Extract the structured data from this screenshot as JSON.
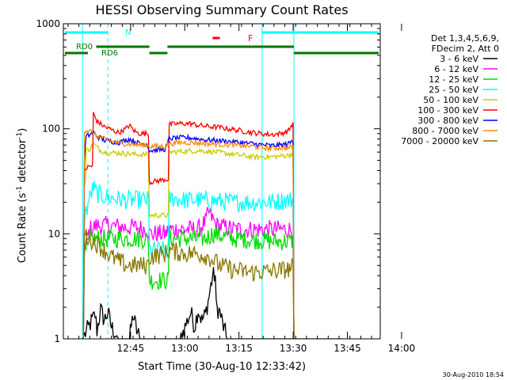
{
  "chart_data": {
    "type": "line",
    "title": "HESSI Observing Summary Count Rates",
    "xlabel": "Start Time (30-Aug-10 12:33:42)",
    "ylabel_parts": [
      "Count Rate (s",
      "-1",
      " detector",
      "-1",
      ")"
    ],
    "yscale": "log",
    "ylim": [
      1,
      1000
    ],
    "xlim_minutes": [
      -7.3,
      80.4
    ],
    "x_ticks": [
      "12:45",
      "13:00",
      "13:15",
      "13:30",
      "13:45",
      "14:00"
    ],
    "y_ticks": [
      "1",
      "10",
      "100",
      "1000"
    ],
    "timestamp": "30-Aug-2010 18:54",
    "legend": {
      "header": [
        "Det 1,3,4,5,6,9,",
        "FDecim 2, Att 0"
      ],
      "entries": [
        {
          "label": "3 - 6 keV",
          "color": "#000000"
        },
        {
          "label": "6 - 12 keV",
          "color": "#ff00ff"
        },
        {
          "label": "12 - 25 keV",
          "color": "#00dd00"
        },
        {
          "label": "25 - 50 keV",
          "color": "#00ffff"
        },
        {
          "label": "50 - 100 keV",
          "color": "#cccc00"
        },
        {
          "label": "100 - 300 keV",
          "color": "#ff0000"
        },
        {
          "label": "300 - 800 keV",
          "color": "#0000ff"
        },
        {
          "label": "800 - 7000 keV",
          "color": "#ff8800"
        },
        {
          "label": "7000 - 20000 keV",
          "color": "#887700"
        }
      ]
    },
    "annotations": {
      "night_label": "N",
      "flare_label": "F",
      "radiation_belt_labels": [
        "RD0",
        "RD6"
      ],
      "night_color": "#00ffff",
      "flare_color": "#ff0000",
      "belt_color": "#007700"
    },
    "series": [
      {
        "name": "3 - 6 keV",
        "color": "#000000",
        "style": "noise",
        "points": [
          [
            -2,
            1
          ],
          [
            1.5,
            1.7
          ],
          [
            2,
            1.2
          ],
          [
            3,
            1.9
          ],
          [
            4,
            1.5
          ],
          [
            5,
            1.8
          ],
          [
            6,
            1.3
          ],
          [
            8,
            1
          ],
          [
            11,
            1
          ],
          [
            12,
            1.7
          ],
          [
            13,
            1.2
          ],
          [
            14,
            1
          ],
          [
            18,
            1
          ],
          [
            25,
            1
          ],
          [
            28,
            1.8
          ],
          [
            29,
            1.3
          ],
          [
            30,
            1.9
          ],
          [
            31,
            1.5
          ],
          [
            32,
            1.7
          ],
          [
            33,
            2.5
          ],
          [
            34,
            4
          ],
          [
            35,
            2
          ],
          [
            36,
            1.8
          ],
          [
            37,
            1.3
          ],
          [
            38,
            1
          ],
          [
            48,
            1
          ],
          [
            70,
            1
          ]
        ]
      },
      {
        "name": "6 - 12 keV",
        "color": "#ff00ff",
        "style": "noise",
        "points": [
          [
            -2,
            1
          ],
          [
            -1.5,
            7
          ],
          [
            0,
            11
          ],
          [
            2,
            12
          ],
          [
            5,
            12
          ],
          [
            10,
            11.5
          ],
          [
            13,
            11.5
          ],
          [
            16,
            11
          ],
          [
            16.5,
            10
          ],
          [
            21,
            10
          ],
          [
            22,
            11
          ],
          [
            26,
            11
          ],
          [
            30,
            11
          ],
          [
            32,
            13
          ],
          [
            33,
            16
          ],
          [
            35,
            12
          ],
          [
            40,
            11
          ],
          [
            50,
            11
          ],
          [
            55,
            11
          ],
          [
            56,
            11
          ],
          [
            56.5,
            1
          ]
        ]
      },
      {
        "name": "12 - 25 keV",
        "color": "#00dd00",
        "style": "noise",
        "points": [
          [
            -2,
            1
          ],
          [
            -1.5,
            6
          ],
          [
            0,
            9
          ],
          [
            5,
            9
          ],
          [
            10,
            9
          ],
          [
            13,
            9
          ],
          [
            16,
            8.8
          ],
          [
            16.5,
            3.6
          ],
          [
            21,
            3.6
          ],
          [
            22,
            9
          ],
          [
            26,
            9
          ],
          [
            32,
            9
          ],
          [
            34,
            10
          ],
          [
            40,
            9
          ],
          [
            50,
            8.5
          ],
          [
            55,
            8.5
          ],
          [
            56,
            8.5
          ],
          [
            56.5,
            1
          ]
        ]
      },
      {
        "name": "25 - 50 keV",
        "color": "#00ffff",
        "style": "noise",
        "points": [
          [
            -2,
            1
          ],
          [
            -1.5,
            14
          ],
          [
            0,
            22
          ],
          [
            1,
            28
          ],
          [
            2,
            24
          ],
          [
            5,
            22
          ],
          [
            10,
            21
          ],
          [
            13,
            21
          ],
          [
            16,
            21
          ],
          [
            16.5,
            7
          ],
          [
            21,
            7
          ],
          [
            22,
            22
          ],
          [
            26,
            21
          ],
          [
            30,
            21
          ],
          [
            40,
            20
          ],
          [
            50,
            20
          ],
          [
            55,
            21
          ],
          [
            56,
            21
          ],
          [
            56.5,
            1
          ]
        ]
      },
      {
        "name": "50 - 100 keV",
        "color": "#cccc00",
        "style": "smooth",
        "points": [
          [
            -2,
            1
          ],
          [
            -1.5,
            30
          ],
          [
            -1,
            62
          ],
          [
            0,
            64
          ],
          [
            1,
            72
          ],
          [
            3,
            62
          ],
          [
            5,
            59
          ],
          [
            8,
            59
          ],
          [
            10,
            58
          ],
          [
            13,
            57
          ],
          [
            16,
            57
          ],
          [
            16.5,
            15
          ],
          [
            21,
            15
          ],
          [
            22,
            60
          ],
          [
            26,
            61
          ],
          [
            30,
            62
          ],
          [
            35,
            60
          ],
          [
            40,
            57
          ],
          [
            45,
            54
          ],
          [
            50,
            54
          ],
          [
            53,
            55
          ],
          [
            55,
            56
          ],
          [
            56,
            58
          ],
          [
            56.5,
            1
          ]
        ]
      },
      {
        "name": "100 - 300 keV",
        "color": "#ff0000",
        "style": "smooth",
        "points": [
          [
            -2,
            1
          ],
          [
            -1.5,
            40
          ],
          [
            -1,
            42
          ],
          [
            0,
            44
          ],
          [
            1,
            140
          ],
          [
            2,
            118
          ],
          [
            4,
            105
          ],
          [
            6,
            98
          ],
          [
            8,
            92
          ],
          [
            10,
            100
          ],
          [
            11,
            108
          ],
          [
            12,
            98
          ],
          [
            13,
            92
          ],
          [
            14,
            90
          ],
          [
            16,
            90
          ],
          [
            16.5,
            31
          ],
          [
            19,
            32
          ],
          [
            21,
            33
          ],
          [
            22,
            110
          ],
          [
            25,
            112
          ],
          [
            28,
            112
          ],
          [
            30,
            108
          ],
          [
            33,
            105
          ],
          [
            36,
            103
          ],
          [
            40,
            98
          ],
          [
            45,
            92
          ],
          [
            50,
            88
          ],
          [
            53,
            90
          ],
          [
            55,
            96
          ],
          [
            56,
            110
          ],
          [
            56.5,
            1
          ]
        ]
      },
      {
        "name": "300 - 800 keV",
        "color": "#0000ff",
        "style": "smooth",
        "points": [
          [
            -2,
            1
          ],
          [
            -1.5,
            50
          ],
          [
            -1,
            84
          ],
          [
            0,
            88
          ],
          [
            1,
            92
          ],
          [
            2,
            85
          ],
          [
            4,
            78
          ],
          [
            6,
            76
          ],
          [
            8,
            74
          ],
          [
            10,
            78
          ],
          [
            11,
            80
          ],
          [
            12,
            77
          ],
          [
            13,
            74
          ],
          [
            14,
            72
          ],
          [
            16,
            72
          ],
          [
            16.5,
            62
          ],
          [
            21,
            64
          ],
          [
            22,
            81
          ],
          [
            25,
            82
          ],
          [
            28,
            82
          ],
          [
            30,
            80
          ],
          [
            33,
            78
          ],
          [
            36,
            77
          ],
          [
            40,
            75
          ],
          [
            45,
            72
          ],
          [
            50,
            69
          ],
          [
            53,
            70
          ],
          [
            55,
            72
          ],
          [
            56,
            76
          ],
          [
            56.5,
            1
          ]
        ]
      },
      {
        "name": "800 - 7000 keV",
        "color": "#ff8800",
        "style": "smooth",
        "points": [
          [
            -2,
            1
          ],
          [
            -1.5,
            96
          ],
          [
            0,
            96
          ],
          [
            1,
            90
          ],
          [
            2,
            85
          ],
          [
            4,
            80
          ],
          [
            6,
            76
          ],
          [
            8,
            74
          ],
          [
            10,
            72
          ],
          [
            12,
            71
          ],
          [
            14,
            70
          ],
          [
            16,
            70
          ],
          [
            16.5,
            68
          ],
          [
            21,
            68
          ],
          [
            22,
            72
          ],
          [
            25,
            74
          ],
          [
            28,
            74
          ],
          [
            30,
            73
          ],
          [
            33,
            72
          ],
          [
            36,
            71
          ],
          [
            40,
            70
          ],
          [
            45,
            68
          ],
          [
            50,
            65
          ],
          [
            53,
            66
          ],
          [
            55,
            66
          ],
          [
            56,
            68
          ],
          [
            56.5,
            1
          ]
        ]
      },
      {
        "name": "7000 - 20000 keV",
        "color": "#887700",
        "style": "noise",
        "points": [
          [
            -2,
            1
          ],
          [
            -1.5,
            10
          ],
          [
            0,
            9
          ],
          [
            2,
            8
          ],
          [
            4,
            7
          ],
          [
            6,
            6
          ],
          [
            8,
            5.5
          ],
          [
            10,
            5
          ],
          [
            13,
            5
          ],
          [
            16,
            5
          ],
          [
            16.5,
            6
          ],
          [
            21,
            6.5
          ],
          [
            22,
            7
          ],
          [
            26,
            6.5
          ],
          [
            30,
            6.5
          ],
          [
            33,
            6
          ],
          [
            36,
            5
          ],
          [
            40,
            4.5
          ],
          [
            45,
            4.3
          ],
          [
            50,
            4.4
          ],
          [
            53,
            4.5
          ],
          [
            55,
            4.6
          ],
          [
            56,
            4.8
          ],
          [
            56.5,
            1
          ]
        ]
      }
    ],
    "intervals": [
      {
        "kind": "night",
        "start": -7.3,
        "end": 5.0,
        "level": "top"
      },
      {
        "kind": "night",
        "start": 47.7,
        "end": 80.4,
        "level": "top"
      },
      {
        "kind": "flare",
        "start": 34,
        "end": 36,
        "level": "middle"
      },
      {
        "kind": "rd0",
        "start": -7.3,
        "end": -0.5,
        "level": "low"
      },
      {
        "kind": "rd0",
        "start": 1.8,
        "end": 16.5,
        "level": "high"
      },
      {
        "kind": "rd0",
        "start": 16.5,
        "end": 21.5,
        "level": "low"
      },
      {
        "kind": "rd0",
        "start": 21.5,
        "end": 56.5,
        "level": "high"
      },
      {
        "kind": "rd0",
        "start": 56.5,
        "end": 80.4,
        "level": "low"
      }
    ],
    "vlines": [
      {
        "x": -7.3,
        "color": "#00ffff",
        "dash": false
      },
      {
        "x": -2.0,
        "color": "#00ffff",
        "dash": false
      },
      {
        "x": 5.0,
        "color": "#00ffff",
        "dash": true
      },
      {
        "x": 47.7,
        "color": "#00ffff",
        "dash": false
      },
      {
        "x": 56.5,
        "color": "#00ffff",
        "dash": false
      },
      {
        "x": 80.4,
        "color": "#00ffff",
        "dash": true
      }
    ]
  }
}
